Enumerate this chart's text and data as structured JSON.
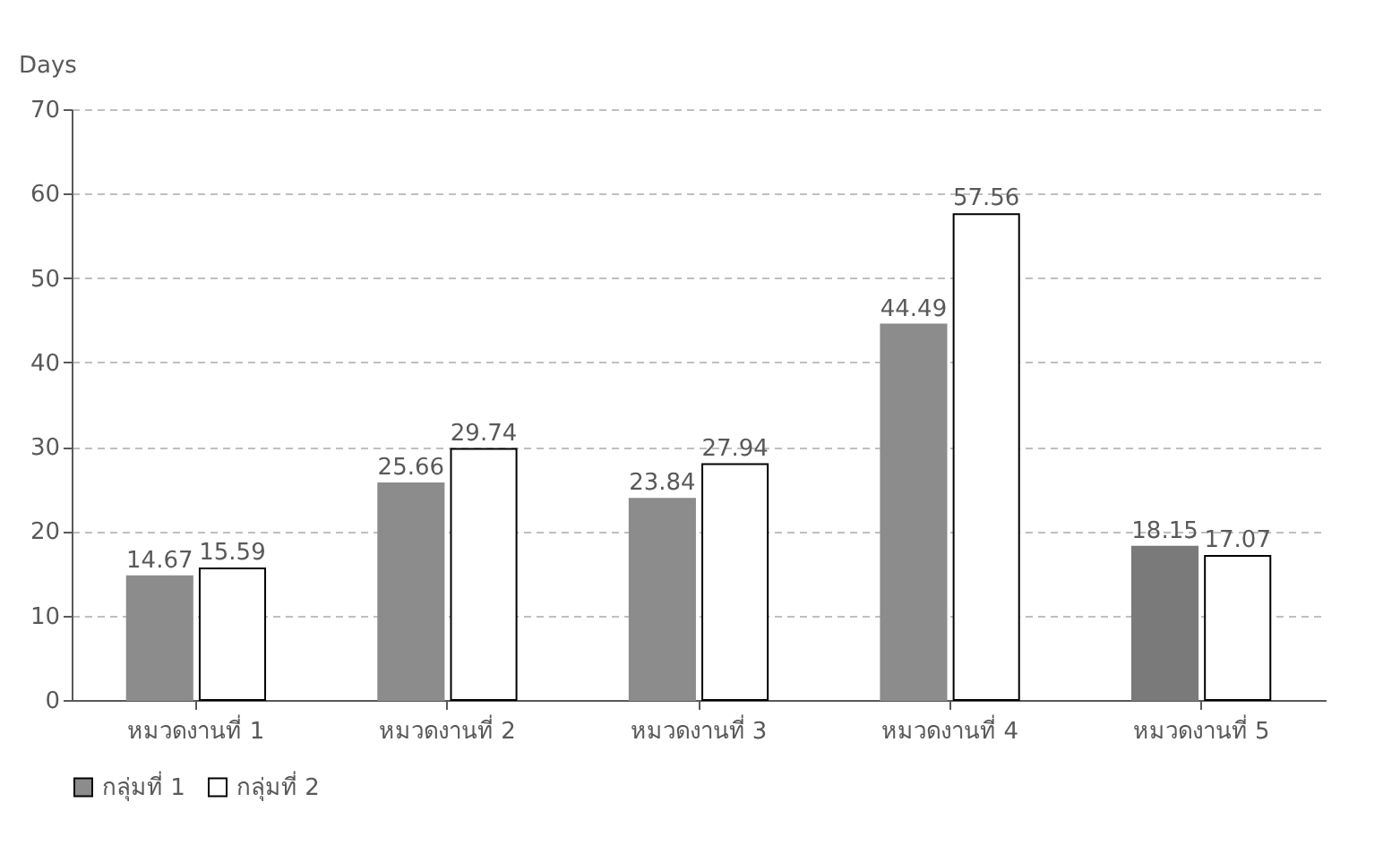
{
  "chart_data": {
    "type": "bar",
    "ylabel": "Days",
    "categories": [
      "หมวดงานที่ 1",
      "หมวดงานที่ 2",
      "หมวดงานที่ 3",
      "หมวดงานที่ 4",
      "หมวดงานที่ 5"
    ],
    "series": [
      {
        "name": "กลุ่มที่ 1",
        "color": "#8c8c8c",
        "colors": [
          "#8c8c8c",
          "#8c8c8c",
          "#8c8c8c",
          "#8c8c8c",
          "#7a7a7a"
        ],
        "values": [
          14.67,
          25.66,
          23.84,
          44.49,
          18.15
        ]
      },
      {
        "name": "กลุ่มที่ 2",
        "color": "#ffffff",
        "values": [
          15.59,
          29.74,
          27.94,
          57.56,
          17.07
        ]
      }
    ],
    "ylim": [
      0,
      70
    ],
    "yticks": [
      0,
      10,
      20,
      30,
      40,
      50,
      60,
      70
    ],
    "grid": "y",
    "legend": "bottom",
    "data_labels": true
  }
}
